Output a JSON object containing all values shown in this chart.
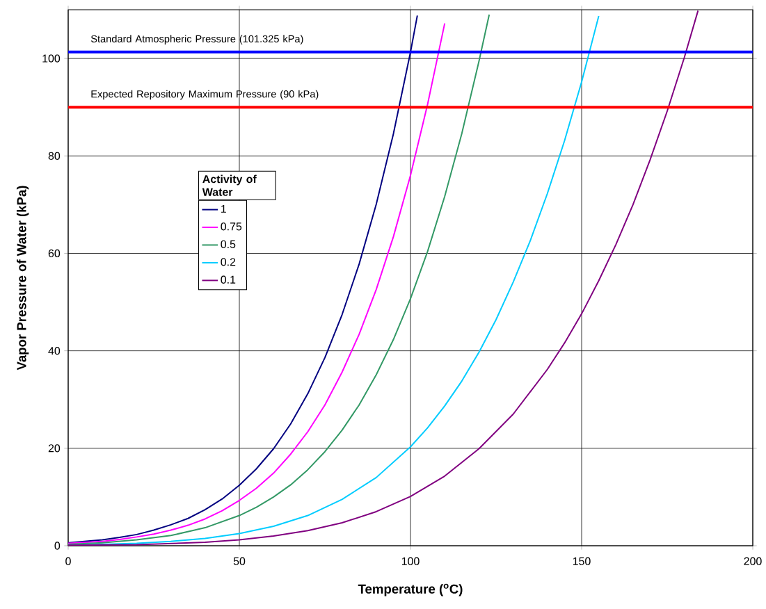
{
  "chart_data": {
    "type": "line",
    "xlabel": "Temperature ($^{o}$C)",
    "ylabel": "Vapor Pressure of Water (kPa)",
    "legend_title": "Activity of Water",
    "xlim": [
      0,
      200
    ],
    "ylim": [
      0,
      110
    ],
    "xticks": [
      0,
      50,
      100,
      150,
      200
    ],
    "yticks": [
      0,
      20,
      40,
      60,
      80,
      100
    ],
    "grid": true,
    "legend": "left",
    "marker": "none",
    "line_style": "solid",
    "series": [
      {
        "name": "1",
        "color": "#000080",
        "x": [
          0,
          5,
          10,
          15,
          20,
          25,
          30,
          35,
          40,
          45,
          50,
          55,
          60,
          65,
          70,
          75,
          80,
          85,
          90,
          95,
          100,
          102
        ],
        "values": [
          0.6,
          0.9,
          1.2,
          1.7,
          2.3,
          3.2,
          4.3,
          5.6,
          7.4,
          9.6,
          12.4,
          15.8,
          19.9,
          25.0,
          31.2,
          38.6,
          47.4,
          57.8,
          70.1,
          84.5,
          101.3,
          108.8
        ]
      },
      {
        "name": "0.75",
        "color": "#ff00ff",
        "x": [
          0,
          5,
          10,
          15,
          20,
          25,
          30,
          35,
          40,
          45,
          50,
          55,
          60,
          65,
          70,
          75,
          80,
          85,
          90,
          95,
          100,
          105,
          110
        ],
        "values": [
          0.5,
          0.7,
          0.9,
          1.3,
          1.8,
          2.4,
          3.2,
          4.2,
          5.5,
          7.2,
          9.3,
          11.8,
          14.9,
          18.8,
          23.4,
          28.9,
          35.6,
          43.4,
          52.6,
          63.4,
          76.0,
          90.6,
          107.2
        ]
      },
      {
        "name": "0.5",
        "color": "#339966",
        "x": [
          0,
          10,
          20,
          30,
          40,
          50,
          55,
          60,
          65,
          70,
          75,
          80,
          85,
          90,
          95,
          100,
          105,
          110,
          115,
          120,
          123
        ],
        "values": [
          0.3,
          0.6,
          1.2,
          2.1,
          3.7,
          6.2,
          7.9,
          10.0,
          12.5,
          15.6,
          19.3,
          23.7,
          28.9,
          35.1,
          42.3,
          50.7,
          60.4,
          71.7,
          84.6,
          99.4,
          109
        ]
      },
      {
        "name": "0.2",
        "color": "#00ccff",
        "x": [
          0,
          10,
          20,
          30,
          40,
          50,
          60,
          70,
          80,
          90,
          100,
          105,
          110,
          115,
          120,
          125,
          130,
          135,
          140,
          145,
          150,
          155
        ],
        "values": [
          0.1,
          0.3,
          0.5,
          0.9,
          1.5,
          2.5,
          4.0,
          6.2,
          9.5,
          14.0,
          20.3,
          24.2,
          28.7,
          33.8,
          39.7,
          46.4,
          54.1,
          62.6,
          72.3,
          83.1,
          95.2,
          108.7
        ]
      },
      {
        "name": "0.1",
        "color": "#800080",
        "x": [
          0,
          20,
          40,
          50,
          60,
          70,
          80,
          90,
          100,
          110,
          120,
          130,
          140,
          145,
          150,
          155,
          160,
          165,
          170,
          175,
          180,
          184
        ],
        "values": [
          0.1,
          0.2,
          0.7,
          1.2,
          2.0,
          3.1,
          4.7,
          7.0,
          10.1,
          14.3,
          19.9,
          27.0,
          36.2,
          41.6,
          47.6,
          54.4,
          61.8,
          70.0,
          79.2,
          89.2,
          100.2,
          109.8
        ]
      }
    ],
    "ref_lines": [
      {
        "axis": "y",
        "value": 101.325,
        "label": "Standard Atmospheric Pressure (101.325 kPa)",
        "color": "#0000ff"
      },
      {
        "axis": "y",
        "value": 90,
        "label": "Expected Repository Maximum Pressure (90 kPa)",
        "color": "#ff0000"
      }
    ]
  }
}
